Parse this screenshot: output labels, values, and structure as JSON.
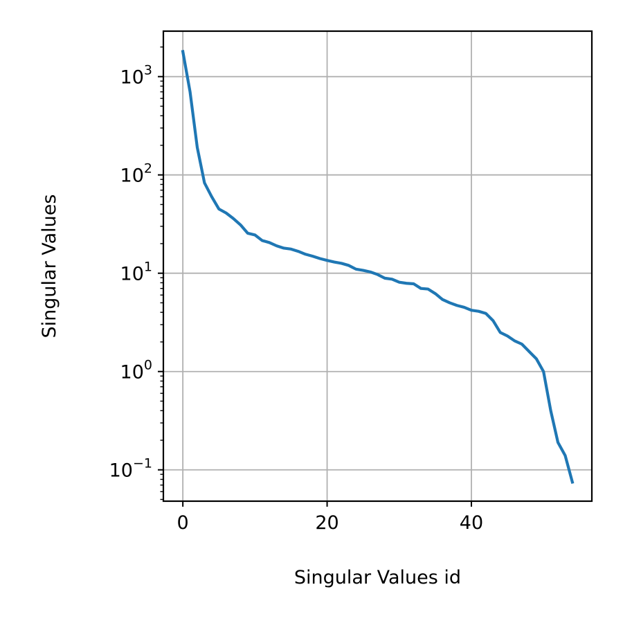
{
  "chart_data": {
    "type": "line",
    "xlabel": "Singular Values id",
    "ylabel": "Singular Values",
    "xlim": [
      -2.7,
      56.7
    ],
    "ylim": [
      0.048,
      2900
    ],
    "yscale": "log",
    "grid": true,
    "x_ticks": [
      {
        "value": 0,
        "label": "0"
      },
      {
        "value": 20,
        "label": "20"
      },
      {
        "value": 40,
        "label": "40"
      }
    ],
    "y_ticks": [
      {
        "value": 0.1,
        "base": "10",
        "exp": "−1"
      },
      {
        "value": 1,
        "base": "10",
        "exp": "0"
      },
      {
        "value": 10,
        "base": "10",
        "exp": "1"
      },
      {
        "value": 100,
        "base": "10",
        "exp": "2"
      },
      {
        "value": 1000,
        "base": "10",
        "exp": "3"
      }
    ],
    "series": [
      {
        "color": "#1f77b4",
        "x": [
          0,
          1,
          2,
          3,
          4,
          5,
          6,
          7,
          8,
          9,
          10,
          11,
          12,
          13,
          14,
          15,
          16,
          17,
          18,
          19,
          20,
          21,
          22,
          23,
          24,
          25,
          26,
          27,
          28,
          29,
          30,
          31,
          32,
          33,
          34,
          35,
          36,
          37,
          38,
          39,
          40,
          41,
          42,
          43,
          44,
          45,
          46,
          47,
          48,
          49,
          50,
          51,
          52,
          53,
          54
        ],
        "y": [
          1800,
          700,
          190,
          83,
          60,
          45,
          41,
          36,
          31,
          25.5,
          24.5,
          21.5,
          20.5,
          19,
          18,
          17.6,
          16.7,
          15.6,
          14.9,
          14.1,
          13.5,
          13,
          12.6,
          12,
          11,
          10.7,
          10.3,
          9.7,
          8.9,
          8.7,
          8.1,
          7.9,
          7.8,
          7,
          6.9,
          6.2,
          5.4,
          5,
          4.7,
          4.5,
          4.2,
          4.1,
          3.9,
          3.3,
          2.5,
          2.3,
          2.05,
          1.9,
          1.6,
          1.35,
          1.0,
          0.4,
          0.19,
          0.14,
          0.075
        ]
      }
    ]
  }
}
